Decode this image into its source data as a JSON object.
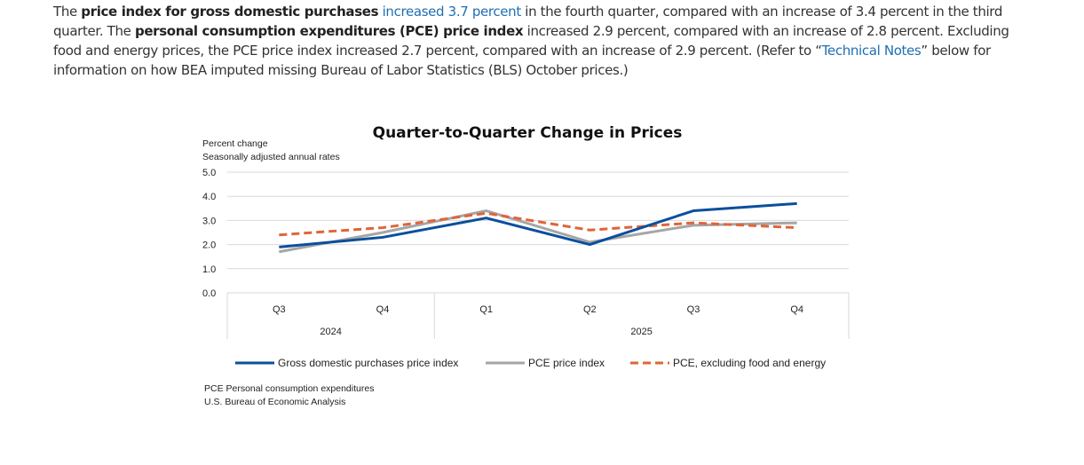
{
  "paragraph": {
    "s1_pre": "The ",
    "s1_bold": "price index for gross domestic purchases",
    "s1_link": "increased 3.7 percent",
    "s1_post": " in the fourth quarter, compared with an increase of 3.4 percent in the third quarter. The ",
    "s2_bold": "personal consumption expenditures (PCE) price index",
    "s2_post": " increased 2.9 percent, compared with an increase of 2.8 percent. Excluding food and energy prices, the PCE price index increased 2.7 percent, compared with an increase of 2.9 percent. (Refer to “",
    "s3_link": "Technical Notes",
    "s3_post": "” below for information on how BEA imputed missing Bureau of Labor Statistics (BLS) October prices.)"
  },
  "colors": {
    "gdp": "#0b4f9c",
    "pce": "#a6a6a6",
    "core": "#e0643a",
    "link": "#1f6fb2",
    "grid": "#d9d9d9"
  },
  "chart_data": {
    "type": "line",
    "title": "Quarter-to-Quarter Change in Prices",
    "ylabel_line1": "Percent change",
    "ylabel_line2": "Seasonally adjusted annual rates",
    "xlabel": "",
    "ylim": [
      0,
      5
    ],
    "yticks": [
      "0.0",
      "1.0",
      "2.0",
      "3.0",
      "4.0",
      "5.0"
    ],
    "grid": true,
    "categories": [
      "Q3",
      "Q4",
      "Q1",
      "Q2",
      "Q3",
      "Q4"
    ],
    "year_groups": [
      {
        "label": "2024",
        "span": 2
      },
      {
        "label": "2025",
        "span": 4
      }
    ],
    "series": [
      {
        "name": "Gross domestic purchases price index",
        "style": "solid",
        "color_key": "gdp",
        "values": [
          1.9,
          2.3,
          3.1,
          2.0,
          3.4,
          3.7
        ]
      },
      {
        "name": "PCE price index",
        "style": "solid",
        "color_key": "pce",
        "values": [
          1.7,
          2.5,
          3.4,
          2.1,
          2.8,
          2.9
        ]
      },
      {
        "name": "PCE, excluding food and energy",
        "style": "dashed",
        "color_key": "core",
        "values": [
          2.4,
          2.7,
          3.3,
          2.6,
          2.9,
          2.7
        ]
      }
    ],
    "legend_position": "bottom",
    "notes": [
      "PCE Personal consumption expenditures",
      "U.S. Bureau of Economic Analysis"
    ]
  }
}
